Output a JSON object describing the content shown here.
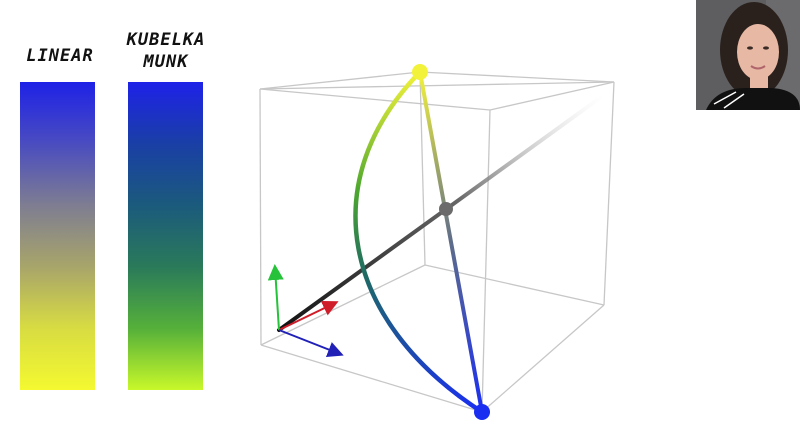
{
  "labels": {
    "linear": "LINEAR",
    "kubelka_munk_line1": "KUBELKA",
    "kubelka_munk_line2": "MUNK"
  },
  "swatches": {
    "linear": [
      "#1e22e6",
      "#4a4cc0",
      "#7e7d92",
      "#a8a56a",
      "#d8dc42",
      "#f4f930"
    ],
    "kubelka_munk": [
      "#1e22e8",
      "#1a3fa6",
      "#1b5a7c",
      "#2a7a5a",
      "#55b03a",
      "#c8f82a"
    ]
  },
  "diagram": {
    "endpoint_top_color": "#f2f23a",
    "endpoint_bottom_color": "#1a2ef2",
    "midpoint_color": "#6b6b6b",
    "axis_colors": {
      "x": "#cf1d2a",
      "y": "#26c23a",
      "z": "#2121b8"
    }
  },
  "webcam": {
    "background": "#5e5e60",
    "hair": "#2a211d",
    "skin": "#e7b8a4",
    "shirt": "#111111"
  }
}
